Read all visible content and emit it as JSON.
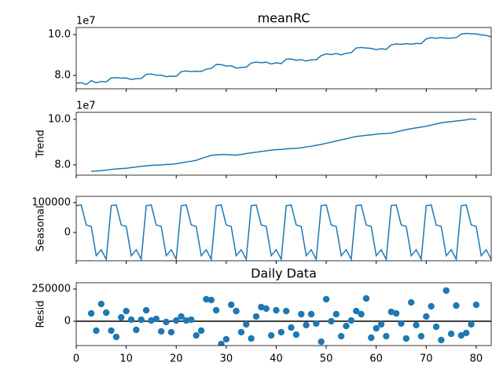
{
  "chart_data": [
    {
      "type": "line",
      "title": "meanRC",
      "offset_label": "1e7",
      "color": "#1f77b4",
      "x": [
        0,
        1,
        2,
        3,
        4,
        5,
        6,
        7,
        8,
        9,
        10,
        11,
        12,
        13,
        14,
        15,
        16,
        17,
        18,
        19,
        20,
        21,
        22,
        23,
        24,
        25,
        26,
        27,
        28,
        29,
        30,
        31,
        32,
        33,
        34,
        35,
        36,
        37,
        38,
        39,
        40,
        41,
        42,
        43,
        44,
        45,
        46,
        47,
        48,
        49,
        50,
        51,
        52,
        53,
        54,
        55,
        56,
        57,
        58,
        59,
        60,
        61,
        62,
        63,
        64,
        65,
        66,
        67,
        68,
        69,
        70,
        71,
        72,
        73,
        74,
        75,
        76,
        77,
        78,
        79,
        80,
        81,
        82,
        83
      ],
      "values": [
        76300000,
        76400000,
        75600000,
        77460000,
        76450000,
        77050000,
        76870000,
        78830000,
        79000000,
        78680000,
        78780000,
        78030000,
        78450000,
        78510000,
        80590000,
        80730000,
        80170000,
        80120000,
        79410000,
        79630000,
        79610000,
        81840000,
        82230000,
        81860000,
        82090000,
        81950000,
        83090000,
        83470000,
        85390000,
        85340000,
        84610000,
        84730000,
        83600000,
        83930000,
        84080000,
        86070000,
        86560000,
        86260000,
        86500000,
        85610000,
        86210000,
        85810000,
        87980000,
        88070000,
        87450000,
        87760000,
        87090000,
        87680000,
        87680000,
        89740000,
        90590000,
        90250000,
        90760000,
        90100000,
        90880000,
        91110000,
        93480000,
        93680000,
        93430000,
        93270000,
        92660000,
        93100000,
        92780000,
        94970000,
        95480000,
        95230000,
        95570000,
        95270000,
        95690000,
        95580000,
        97940000,
        98540000,
        98210000,
        98550000,
        98260000,
        98320000,
        98520000,
        100290000,
        100630000,
        100430000,
        100330000,
        99900000,
        99600000,
        98900000
      ],
      "xlim": [
        0,
        83
      ],
      "xticks": [
        0,
        10,
        20,
        30,
        40,
        50,
        60,
        70,
        80
      ],
      "ylim": [
        73500000,
        103500000
      ],
      "yticks": [
        {
          "value": 80000000,
          "label": "8.0"
        },
        {
          "value": 100000000,
          "label": "10.0"
        }
      ]
    },
    {
      "type": "line",
      "ylabel": "Trend",
      "offset_label": "1e7",
      "color": "#1f77b4",
      "x": [
        0,
        1,
        2,
        3,
        4,
        5,
        6,
        7,
        8,
        9,
        10,
        11,
        12,
        13,
        14,
        15,
        16,
        17,
        18,
        19,
        20,
        21,
        22,
        23,
        24,
        25,
        26,
        27,
        28,
        29,
        30,
        31,
        32,
        33,
        34,
        35,
        36,
        37,
        38,
        39,
        40,
        41,
        42,
        43,
        44,
        45,
        46,
        47,
        48,
        49,
        50,
        51,
        52,
        53,
        54,
        55,
        56,
        57,
        58,
        59,
        60,
        61,
        62,
        63,
        64,
        65,
        66,
        67,
        68,
        69,
        70,
        71,
        72,
        73,
        74,
        75,
        76,
        77,
        78,
        79,
        80,
        81,
        82,
        83
      ],
      "values": [
        null,
        null,
        null,
        77200000,
        77300000,
        77500000,
        77700000,
        78000000,
        78200000,
        78400000,
        78500000,
        78800000,
        79100000,
        79400000,
        79600000,
        79800000,
        79900000,
        80000000,
        80200000,
        80300000,
        80500000,
        80900000,
        81300000,
        81600000,
        82000000,
        82800000,
        83500000,
        84200000,
        84400000,
        84600000,
        84500000,
        84400000,
        84300000,
        84600000,
        85000000,
        85300000,
        85600000,
        85900000,
        86200000,
        86500000,
        86700000,
        86800000,
        87000000,
        87200000,
        87300000,
        87500000,
        87900000,
        88200000,
        88600000,
        89000000,
        89500000,
        90000000,
        90500000,
        91000000,
        91500000,
        92000000,
        92500000,
        92700000,
        93000000,
        93200000,
        93500000,
        93700000,
        93800000,
        94000000,
        94500000,
        95000000,
        95500000,
        95900000,
        96300000,
        96600000,
        97000000,
        97500000,
        98000000,
        98500000,
        98800000,
        99000000,
        99300000,
        99500000,
        99800000,
        100200000,
        100000000,
        null,
        null,
        null
      ],
      "xlim": [
        0,
        83
      ],
      "xticks": [
        0,
        10,
        20,
        30,
        40,
        50,
        60,
        70,
        80
      ],
      "ylim": [
        75500000,
        103100000
      ],
      "yticks": [
        {
          "value": 80000000,
          "label": "8.0"
        },
        {
          "value": 100000000,
          "label": "10.0"
        }
      ]
    },
    {
      "type": "line",
      "ylabel": "Seasonal",
      "color": "#1f77b4",
      "x": [
        0,
        1,
        2,
        3,
        4,
        5,
        6,
        7,
        8,
        9,
        10,
        11,
        12,
        13,
        14,
        15,
        16,
        17,
        18,
        19,
        20,
        21,
        22,
        23,
        24,
        25,
        26,
        27,
        28,
        29,
        30,
        31,
        32,
        33,
        34,
        35,
        36,
        37,
        38,
        39,
        40,
        41,
        42,
        43,
        44,
        45,
        46,
        47,
        48,
        49,
        50,
        51,
        52,
        53,
        54,
        55,
        56,
        57,
        58,
        59,
        60,
        61,
        62,
        63,
        64,
        65,
        66,
        67,
        68,
        69,
        70,
        71,
        72,
        73,
        74,
        75,
        76,
        77,
        78,
        79,
        80,
        81,
        82,
        83
      ],
      "values": [
        90000,
        92000,
        25000,
        20000,
        -78000,
        -58000,
        -90000,
        90000,
        92000,
        25000,
        20000,
        -78000,
        -58000,
        -90000,
        90000,
        92000,
        25000,
        20000,
        -78000,
        -58000,
        -90000,
        90000,
        92000,
        25000,
        20000,
        -78000,
        -58000,
        -90000,
        90000,
        92000,
        25000,
        20000,
        -78000,
        -58000,
        -90000,
        90000,
        92000,
        25000,
        20000,
        -78000,
        -58000,
        -90000,
        90000,
        92000,
        25000,
        20000,
        -78000,
        -58000,
        -90000,
        90000,
        92000,
        25000,
        20000,
        -78000,
        -58000,
        -90000,
        90000,
        92000,
        25000,
        20000,
        -78000,
        -58000,
        -90000,
        90000,
        92000,
        25000,
        20000,
        -78000,
        -58000,
        -90000,
        90000,
        92000,
        25000,
        20000,
        -78000,
        -58000,
        -90000,
        90000,
        92000,
        25000,
        20000,
        -78000,
        -58000,
        -90000
      ],
      "xlim": [
        0,
        83
      ],
      "xticks": [
        0,
        10,
        20,
        30,
        40,
        50,
        60,
        70,
        80
      ],
      "ylim": [
        -95000,
        121000
      ],
      "yticks": [
        0,
        100000
      ]
    },
    {
      "type": "scatter",
      "title": "Daily Data",
      "ylabel": "Resid",
      "color": "#1f77b4",
      "x": [
        0,
        1,
        2,
        3,
        4,
        5,
        6,
        7,
        8,
        9,
        10,
        11,
        12,
        13,
        14,
        15,
        16,
        17,
        18,
        19,
        20,
        21,
        22,
        23,
        24,
        25,
        26,
        27,
        28,
        29,
        30,
        31,
        32,
        33,
        34,
        35,
        36,
        37,
        38,
        39,
        40,
        41,
        42,
        43,
        44,
        45,
        46,
        47,
        48,
        49,
        50,
        51,
        52,
        53,
        54,
        55,
        56,
        57,
        58,
        59,
        60,
        61,
        62,
        63,
        64,
        65,
        66,
        67,
        68,
        69,
        70,
        71,
        72,
        73,
        74,
        75,
        76,
        77,
        78,
        79,
        80,
        81,
        82,
        83
      ],
      "values": [
        null,
        null,
        null,
        61000,
        -73000,
        134000,
        67000,
        -73000,
        -122000,
        30000,
        79000,
        12000,
        -67000,
        12000,
        85000,
        6000,
        18000,
        -79000,
        -6000,
        -85000,
        6000,
        37000,
        6000,
        12000,
        -110000,
        -73000,
        171000,
        165000,
        85000,
        -177000,
        -140000,
        128000,
        79000,
        -85000,
        -24000,
        -134000,
        37000,
        110000,
        98000,
        -110000,
        85000,
        -85000,
        79000,
        -49000,
        -104000,
        55000,
        -30000,
        55000,
        -18000,
        -159000,
        171000,
        0,
        55000,
        -116000,
        -37000,
        6000,
        79000,
        55000,
        177000,
        -128000,
        -55000,
        -24000,
        -116000,
        73000,
        61000,
        -18000,
        -134000,
        146000,
        -30000,
        -116000,
        37000,
        116000,
        -43000,
        -146000,
        238000,
        -98000,
        122000,
        -110000,
        -91000,
        -24000,
        128000,
        null,
        null,
        null
      ],
      "xlim": [
        0,
        83
      ],
      "xticks": [
        0,
        10,
        20,
        30,
        40,
        50,
        60,
        70,
        80
      ],
      "ylim": [
        -189000,
        299000
      ],
      "yticks": [
        0,
        250000
      ]
    }
  ]
}
